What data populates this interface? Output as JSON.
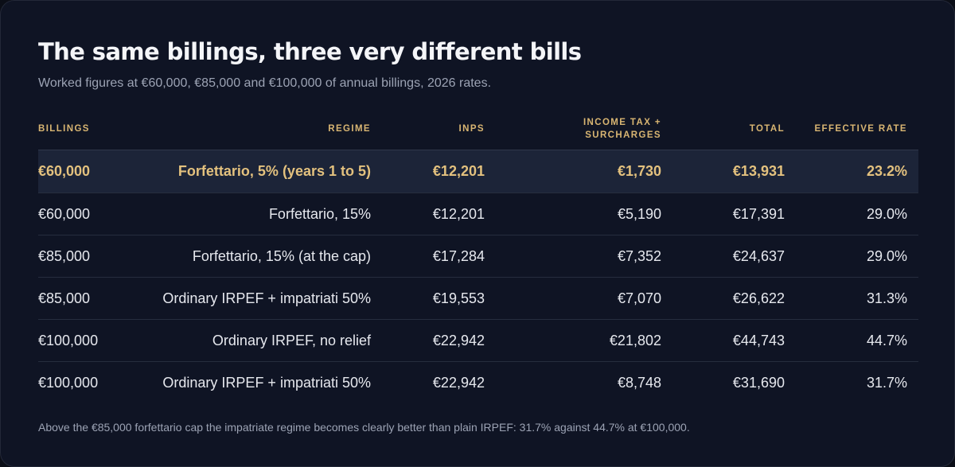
{
  "title": "The same billings, three very different bills",
  "subtitle": "Worked figures at €60,000, €85,000 and €100,000 of annual billings, 2026 rates.",
  "headers": {
    "billings": "BILLINGS",
    "regime": "REGIME",
    "inps": "INPS",
    "income_tax_line1": "INCOME TAX +",
    "income_tax_line2": "SURCHARGES",
    "total": "TOTAL",
    "effective_rate": "EFFECTIVE RATE"
  },
  "rows": [
    {
      "billings": "€60,000",
      "regime": "Forfettario, 5% (years 1 to 5)",
      "inps": "€12,201",
      "income_tax": "€1,730",
      "total": "€13,931",
      "effective_rate": "23.2%",
      "highlighted": true
    },
    {
      "billings": "€60,000",
      "regime": "Forfettario, 15%",
      "inps": "€12,201",
      "income_tax": "€5,190",
      "total": "€17,391",
      "effective_rate": "29.0%"
    },
    {
      "billings": "€85,000",
      "regime": "Forfettario, 15% (at the cap)",
      "inps": "€17,284",
      "income_tax": "€7,352",
      "total": "€24,637",
      "effective_rate": "29.0%"
    },
    {
      "billings": "€85,000",
      "regime": "Ordinary IRPEF + impatriati 50%",
      "inps": "€19,553",
      "income_tax": "€7,070",
      "total": "€26,622",
      "effective_rate": "31.3%"
    },
    {
      "billings": "€100,000",
      "regime": "Ordinary IRPEF, no relief",
      "inps": "€22,942",
      "income_tax": "€21,802",
      "total": "€44,743",
      "effective_rate": "44.7%"
    },
    {
      "billings": "€100,000",
      "regime": "Ordinary IRPEF + impatriati 50%",
      "inps": "€22,942",
      "income_tax": "€8,748",
      "total": "€31,690",
      "effective_rate": "31.7%"
    }
  ],
  "footnote": "Above the €85,000 forfettario cap the impatriate regime becomes clearly better than plain IRPEF: 31.7% against 44.7% at €100,000.",
  "colors": {
    "background": "#0f1424",
    "accent": "#d8b572",
    "highlight_row": "#1c2438",
    "text": "#e6e8ee",
    "muted": "#9ca3b4"
  }
}
